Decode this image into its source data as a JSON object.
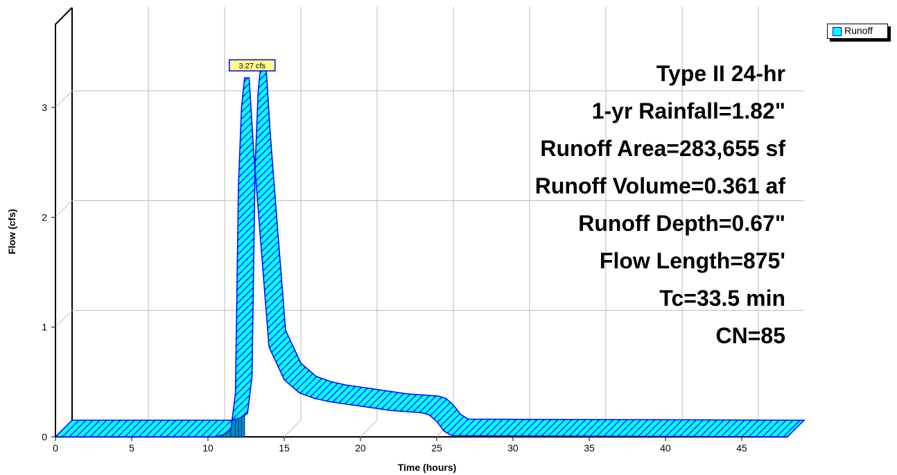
{
  "chart_data": {
    "type": "area",
    "xlabel": "Time  (hours)",
    "ylabel": "Flow  (cfs)",
    "xlim": [
      0,
      48
    ],
    "ylim": [
      0,
      3.6
    ],
    "xticks": [
      0,
      5,
      10,
      15,
      20,
      25,
      30,
      35,
      40,
      45
    ],
    "yticks": [
      0,
      1,
      2,
      3
    ],
    "grid": true,
    "legend_position": "top-right",
    "colors": {
      "fill": "#00ffff",
      "edge": "#0000ff",
      "side": "#009999",
      "hatch": "#0000ff"
    },
    "series": [
      {
        "name": "Runoff",
        "x": [
          0,
          10.5,
          11.0,
          11.5,
          11.8,
          12.0,
          12.2,
          12.4,
          12.7,
          13.0,
          13.5,
          14.0,
          15.0,
          16.0,
          17.0,
          18.0,
          20.0,
          22.0,
          24.0,
          24.5,
          25.0,
          25.5,
          26.0,
          48.0
        ],
        "y": [
          0,
          0,
          0.02,
          0.06,
          0.4,
          2.3,
          3.0,
          3.27,
          3.27,
          2.6,
          1.7,
          0.82,
          0.52,
          0.4,
          0.35,
          0.32,
          0.28,
          0.24,
          0.22,
          0.2,
          0.14,
          0.05,
          0.01,
          0
        ]
      }
    ],
    "peak_label": "3.27 cfs",
    "annotations": [
      "Type II 24-hr",
      "1-yr Rainfall=1.82\"",
      "Runoff Area=283,655 sf",
      "Runoff Volume=0.361 af",
      "Runoff Depth=0.67\"",
      "Flow Length=875'",
      "Tc=33.5 min",
      "CN=85"
    ]
  }
}
